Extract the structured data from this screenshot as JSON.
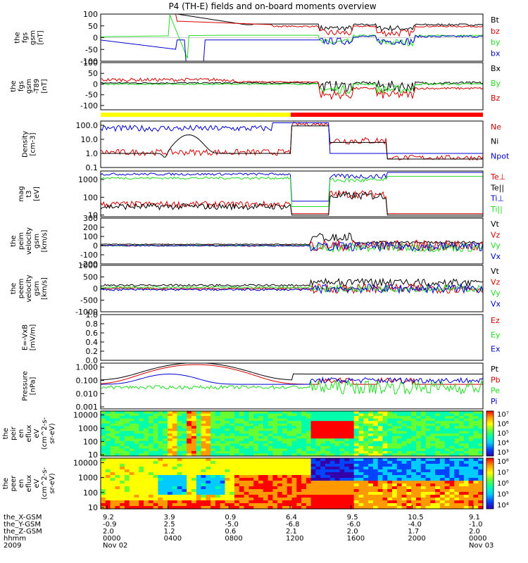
{
  "title": "P4 (TH-E) fields and on-board moments overview",
  "colors": {
    "black": "#000000",
    "red": "#d40000",
    "green": "#22dd22",
    "blue": "#0000d0",
    "yellow": "#ffff00",
    "mode_red": "#ff0000"
  },
  "chart_data": [
    {
      "type": "line",
      "id": "fgs",
      "ylabel": [
        "the",
        "fgs",
        "gsm",
        "[nT]"
      ],
      "ylim": [
        -100,
        100
      ],
      "yticks": [
        "100",
        "50",
        "0",
        "-50",
        "-100"
      ],
      "legend": [
        {
          "label": "Bt",
          "color": "#000000"
        },
        {
          "label": "bz",
          "color": "#d40000"
        },
        {
          "label": "by",
          "color": "#22dd22"
        },
        {
          "label": "bx",
          "color": "#0000d0"
        }
      ]
    },
    {
      "type": "line",
      "id": "fgs_t89",
      "ylabel": [
        "the",
        "fgs",
        "gsm",
        "-T89",
        "[nT]"
      ],
      "ylim": [
        -120,
        100
      ],
      "yticks": [
        "100",
        "50",
        "0",
        "-50",
        "-100"
      ],
      "legend": [
        {
          "label": "Bx",
          "color": "#000000"
        },
        {
          "label": "By",
          "color": "#22dd22"
        },
        {
          "label": "Bz",
          "color": "#d40000"
        }
      ]
    },
    {
      "type": "line",
      "id": "density",
      "log": true,
      "ylabel": [
        "Density",
        "[cm-3]"
      ],
      "ylim": [
        0.1,
        200
      ],
      "yticks": [
        "100.0",
        "10.0",
        "1.0",
        "0.1"
      ],
      "legend": [
        {
          "label": "Ne",
          "color": "#d40000"
        },
        {
          "label": "Ni",
          "color": "#000000"
        },
        {
          "label": "Npot",
          "color": "#0000d0"
        }
      ]
    },
    {
      "type": "line",
      "id": "temperature",
      "log": true,
      "ylabel": [
        "mag",
        "t3",
        "[eV]"
      ],
      "ylim": [
        8,
        3000
      ],
      "yticks": [
        "1000",
        "100",
        "10"
      ],
      "legend": [
        {
          "label": "Te⊥",
          "color": "#d40000"
        },
        {
          "label": "Te||",
          "color": "#000000"
        },
        {
          "label": "Ti⊥",
          "color": "#0000d0"
        },
        {
          "label": "Ti||",
          "color": "#22dd22"
        }
      ]
    },
    {
      "type": "line",
      "id": "ion_velocity",
      "ylabel": [
        "the",
        "peim",
        "velocity",
        "gsm",
        "[km/s]"
      ],
      "ylim": [
        -200,
        300
      ],
      "yticks": [
        "300",
        "200",
        "100",
        "0",
        "-100",
        "-200"
      ],
      "legend": [
        {
          "label": "Vt",
          "color": "#000000"
        },
        {
          "label": "Vz",
          "color": "#d40000"
        },
        {
          "label": "Vy",
          "color": "#22dd22"
        },
        {
          "label": "Vx",
          "color": "#0000d0"
        }
      ]
    },
    {
      "type": "line",
      "id": "electron_velocity",
      "ylabel": [
        "the",
        "peem",
        "velocity",
        "gsm",
        "[km/s]"
      ],
      "ylim": [
        -1000,
        1000
      ],
      "yticks": [
        "1000",
        "500",
        "0",
        "-500",
        "-1000"
      ],
      "legend": [
        {
          "label": "Vt",
          "color": "#000000"
        },
        {
          "label": "Vz",
          "color": "#d40000"
        },
        {
          "label": "Vy",
          "color": "#22dd22"
        },
        {
          "label": "Vx",
          "color": "#0000d0"
        }
      ]
    },
    {
      "type": "line",
      "id": "efield",
      "ylabel": [
        "E=-VxB",
        "[mV/m]"
      ],
      "ylim": [
        0,
        1
      ],
      "yticks": [
        "1.0",
        "0.8",
        "0.6",
        "0.4",
        "0.2",
        "0.0"
      ],
      "legend": [
        {
          "label": "Ez",
          "color": "#d40000"
        },
        {
          "label": "Ey",
          "color": "#22dd22"
        },
        {
          "label": "Ex",
          "color": "#0000d0"
        }
      ]
    },
    {
      "type": "line",
      "id": "pressure",
      "log": true,
      "ylabel": [
        "Pressure",
        "[nPa]"
      ],
      "ylim": [
        0.0007,
        2
      ],
      "yticks": [
        "1.000",
        "0.100",
        "0.010",
        "0.001"
      ],
      "legend": [
        {
          "label": "Pt",
          "color": "#000000"
        },
        {
          "label": "Pb",
          "color": "#d40000"
        },
        {
          "label": "Pe",
          "color": "#22dd22"
        },
        {
          "label": "Pi",
          "color": "#0000d0"
        }
      ]
    },
    {
      "type": "heatmap",
      "id": "ion_spectrogram",
      "ylabel": [
        "the",
        "peir",
        "en",
        "eflux",
        "eV",
        "(cm^2-s-",
        "sr-eV)"
      ],
      "ylim": [
        8,
        20000
      ],
      "yticks": [
        "10000",
        "1000",
        "100",
        "10"
      ],
      "colorbar_ticks": [
        "10⁷",
        "10⁶",
        "10⁵",
        "10⁴",
        "10³"
      ]
    },
    {
      "type": "heatmap",
      "id": "electron_spectrogram",
      "ylabel": [
        "the",
        "peer",
        "en",
        "eflux",
        "eV",
        "(cm^2-s-",
        "sr-eV)"
      ],
      "ylim": [
        8,
        20000
      ],
      "yticks": [
        "10000",
        "1000",
        "100",
        "10"
      ],
      "colorbar_ticks": [
        "10⁸",
        "10⁷",
        "10⁶",
        "10⁵",
        "10⁴"
      ]
    }
  ],
  "mode_bar": {
    "segments": [
      {
        "from": 0,
        "to": 0.497,
        "color": "#ffff00"
      },
      {
        "from": 0.497,
        "to": 1,
        "color": "#ff0000"
      }
    ]
  },
  "x_axis": {
    "row_labels": [
      "the_X-GSM",
      "the_Y-GSM",
      "the_Z-GSM",
      "hhmm",
      "2009"
    ],
    "columns": [
      {
        "vals": [
          "9.2",
          "-0.9",
          "2.0",
          "0000",
          "Nov 02"
        ]
      },
      {
        "vals": [
          "3.9",
          "2.5",
          "1.2",
          "0400",
          ""
        ]
      },
      {
        "vals": [
          "0.9",
          "-5.0",
          "0.6",
          "0800",
          ""
        ]
      },
      {
        "vals": [
          "6.4",
          "-6.8",
          "2.1",
          "1200",
          ""
        ]
      },
      {
        "vals": [
          "9.5",
          "-6.0",
          "2.0",
          "1600",
          ""
        ]
      },
      {
        "vals": [
          "10.5",
          "-4.0",
          "1.7",
          "2000",
          ""
        ]
      },
      {
        "vals": [
          "9.1",
          "-1.0",
          "2.0",
          "0000",
          "Nov 03"
        ]
      }
    ]
  }
}
